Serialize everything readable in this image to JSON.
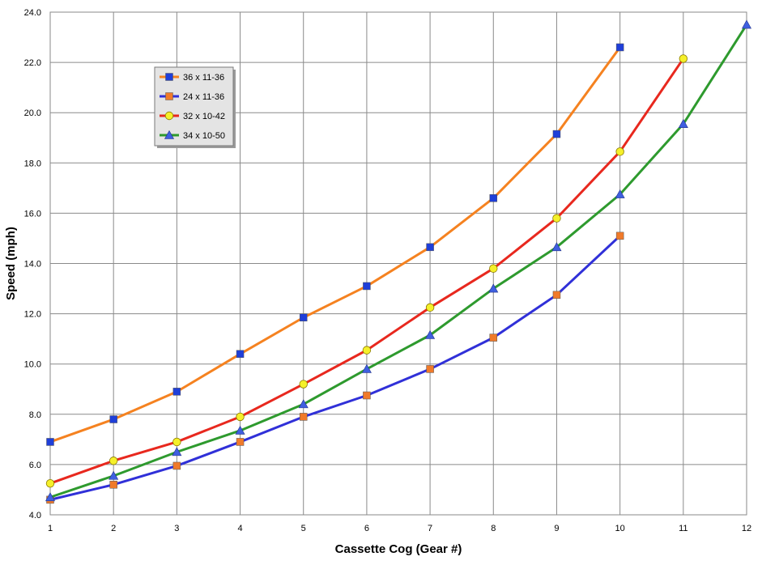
{
  "chart_data": {
    "type": "line",
    "title": "",
    "xlabel": "Cassette Cog (Gear #)",
    "ylabel": "Speed (mph)",
    "xlim": [
      1,
      12
    ],
    "ylim": [
      4.0,
      24.0
    ],
    "x_ticks": [
      "1",
      "2",
      "3",
      "4",
      "5",
      "6",
      "7",
      "8",
      "9",
      "10",
      "11",
      "12"
    ],
    "y_ticks": [
      "4.0",
      "6.0",
      "8.0",
      "10.0",
      "12.0",
      "14.0",
      "16.0",
      "18.0",
      "20.0",
      "22.0",
      "24.0"
    ],
    "grid": true,
    "legend_position": "top-left",
    "series": [
      {
        "name": "36 x 11-36",
        "color": "#f58220",
        "marker": "square",
        "marker_color": "#1f3fd9",
        "x": [
          1,
          2,
          3,
          4,
          5,
          6,
          7,
          8,
          9,
          10
        ],
        "y": [
          6.9,
          7.8,
          8.9,
          10.4,
          11.85,
          13.1,
          14.65,
          16.6,
          19.15,
          22.6
        ]
      },
      {
        "name": "24 x 11-36",
        "color": "#3030d8",
        "marker": "square",
        "marker_color": "#f07a2a",
        "x": [
          1,
          2,
          3,
          4,
          5,
          6,
          7,
          8,
          9,
          10
        ],
        "y": [
          4.6,
          5.2,
          5.95,
          6.9,
          7.9,
          8.75,
          9.8,
          11.05,
          12.75,
          15.1
        ]
      },
      {
        "name": "32 x 10-42",
        "color": "#e8281e",
        "marker": "circle",
        "marker_color": "#f5f02a",
        "x": [
          1,
          2,
          3,
          4,
          5,
          6,
          7,
          8,
          9,
          10,
          11
        ],
        "y": [
          5.25,
          6.15,
          6.9,
          7.9,
          9.2,
          10.55,
          12.25,
          13.8,
          15.8,
          18.45,
          22.15
        ]
      },
      {
        "name": "34 x 10-50",
        "color": "#2e9a2e",
        "marker": "triangle",
        "marker_color": "#3f5fe0",
        "x": [
          1,
          2,
          3,
          4,
          5,
          6,
          7,
          8,
          9,
          10,
          11,
          12
        ],
        "y": [
          4.7,
          5.55,
          6.5,
          7.35,
          8.4,
          9.8,
          11.15,
          13.0,
          14.65,
          16.75,
          19.55,
          23.5
        ]
      }
    ]
  }
}
